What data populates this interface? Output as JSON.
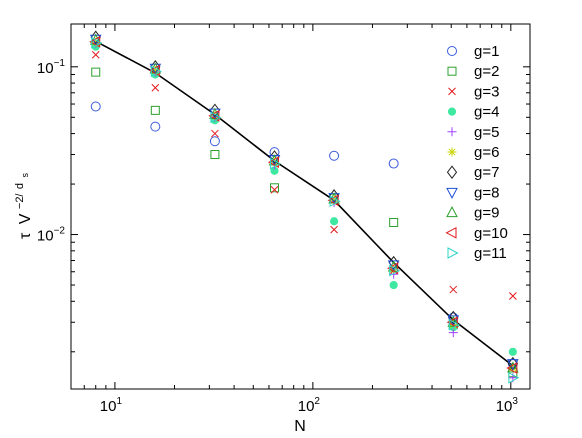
{
  "chart_data": {
    "type": "scatter",
    "xlabel": "N",
    "ylabel_parts": {
      "tau": "τ",
      "v": "V",
      "exp_pre": "−2/",
      "exp_d": "d",
      "exp_s": "s"
    },
    "xscale": "log",
    "yscale": "log",
    "xlim": [
      6.0,
      1250
    ],
    "ylim": [
      0.0012,
      0.18
    ],
    "legend_position": "top-right",
    "x_ticks": [
      {
        "value": 10,
        "base": "10",
        "exp": "1"
      },
      {
        "value": 100,
        "base": "10",
        "exp": "2"
      },
      {
        "value": 1000,
        "base": "10",
        "exp": "3"
      }
    ],
    "y_ticks": [
      {
        "value": 0.01,
        "base": "10",
        "exp": "−2"
      },
      {
        "value": 0.1,
        "base": "10",
        "exp": "−1"
      }
    ],
    "fit_line": {
      "x": [
        8,
        16,
        32,
        64,
        128,
        256,
        512,
        1024
      ],
      "y": [
        0.142,
        0.092,
        0.052,
        0.0275,
        0.016,
        0.0068,
        0.0031,
        0.00165
      ]
    },
    "series": [
      {
        "name": "g=1",
        "marker": "circle",
        "color": "#3b5bdb",
        "x": [
          8,
          16,
          32,
          64,
          128,
          256,
          512,
          1024
        ],
        "y": [
          0.058,
          0.044,
          0.036,
          0.031,
          0.0295,
          0.0265,
          0.0032,
          0.0017
        ]
      },
      {
        "name": "g=2",
        "marker": "square",
        "color": "#2ca02c",
        "x": [
          8,
          16,
          32,
          64,
          128,
          256,
          512,
          1024
        ],
        "y": [
          0.093,
          0.055,
          0.03,
          0.019,
          0.0165,
          0.0118,
          0.0029,
          0.0015
        ]
      },
      {
        "name": "g=3",
        "marker": "x",
        "color": "#e31a1c",
        "x": [
          8,
          16,
          32,
          64,
          128,
          256,
          512,
          1024
        ],
        "y": [
          0.118,
          0.075,
          0.04,
          0.0185,
          0.0107,
          0.0061,
          0.0047,
          0.0043
        ]
      },
      {
        "name": "g=4",
        "marker": "filled-circle",
        "color": "#3ee8a0",
        "x": [
          8,
          16,
          32,
          64,
          128,
          256,
          512,
          1024
        ],
        "y": [
          0.132,
          0.09,
          0.048,
          0.024,
          0.012,
          0.005,
          0.0028,
          0.002
        ]
      },
      {
        "name": "g=5",
        "marker": "plus",
        "color": "#a040ff",
        "x": [
          8,
          16,
          32,
          64,
          128,
          256,
          512,
          1024
        ],
        "y": [
          0.138,
          0.093,
          0.05,
          0.026,
          0.0155,
          0.0058,
          0.0026,
          0.0014
        ]
      },
      {
        "name": "g=6",
        "marker": "asterisk",
        "color": "#c8d400",
        "x": [
          8,
          16,
          32,
          64,
          128,
          256,
          512,
          1024
        ],
        "y": [
          0.14,
          0.095,
          0.051,
          0.027,
          0.016,
          0.0062,
          0.0029,
          0.0016
        ]
      },
      {
        "name": "g=7",
        "marker": "diamond",
        "color": "#222222",
        "x": [
          8,
          16,
          32,
          64,
          128,
          256,
          512,
          1024
        ],
        "y": [
          0.15,
          0.1,
          0.055,
          0.029,
          0.017,
          0.0068,
          0.0032,
          0.0017
        ]
      },
      {
        "name": "g=8",
        "marker": "triangle-down",
        "color": "#1f4fd8",
        "x": [
          8,
          16,
          32,
          64,
          128,
          256,
          512,
          1024
        ],
        "y": [
          0.146,
          0.098,
          0.053,
          0.028,
          0.0166,
          0.0066,
          0.0031,
          0.0017
        ]
      },
      {
        "name": "g=9",
        "marker": "triangle-up",
        "color": "#2ca02c",
        "x": [
          8,
          16,
          32,
          64,
          128,
          256,
          512,
          1024
        ],
        "y": [
          0.144,
          0.097,
          0.052,
          0.0275,
          0.0163,
          0.0064,
          0.003,
          0.0016
        ]
      },
      {
        "name": "g=10",
        "marker": "triangle-left",
        "color": "#e31a1c",
        "x": [
          8,
          16,
          32,
          64,
          128,
          256,
          512,
          1024
        ],
        "y": [
          0.141,
          0.095,
          0.051,
          0.027,
          0.016,
          0.0063,
          0.003,
          0.0016
        ]
      },
      {
        "name": "g=11",
        "marker": "triangle-right",
        "color": "#2fd4c6",
        "x": [
          8,
          16,
          32,
          64,
          128,
          256,
          512,
          1024
        ],
        "y": [
          0.139,
          0.094,
          0.05,
          0.0265,
          0.0158,
          0.0061,
          0.0029,
          0.0014
        ]
      }
    ]
  }
}
